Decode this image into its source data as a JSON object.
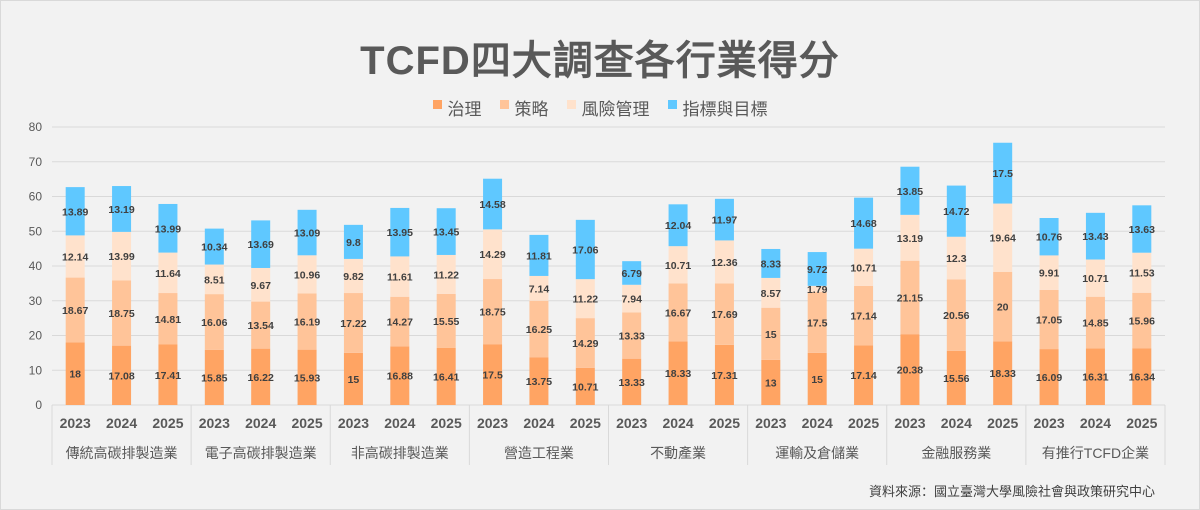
{
  "chart_data": {
    "type": "bar",
    "stacked": true,
    "title": "TCFD四大調查各行業得分",
    "xlabel": "",
    "ylabel": "",
    "ylim": [
      0,
      80
    ],
    "yticks": [
      0,
      10,
      20,
      30,
      40,
      50,
      60,
      70,
      80
    ],
    "grid": true,
    "legend_position": "top",
    "groups": [
      "傳統高碳排製造業",
      "電子高碳排製造業",
      "非高碳排製造業",
      "營造工程業",
      "不動產業",
      "運輸及倉儲業",
      "金融服務業",
      "有推行TCFD企業"
    ],
    "years": [
      "2023",
      "2024",
      "2025"
    ],
    "series": [
      {
        "name": "治理",
        "color": "#ffa463",
        "values": [
          [
            18,
            17.08,
            17.41
          ],
          [
            15.85,
            16.22,
            15.93
          ],
          [
            15,
            16.88,
            16.41
          ],
          [
            17.5,
            13.75,
            10.71
          ],
          [
            13.33,
            18.33,
            17.31
          ],
          [
            13,
            15,
            17.14
          ],
          [
            20.38,
            15.56,
            18.33
          ],
          [
            16.09,
            16.31,
            16.34
          ]
        ]
      },
      {
        "name": "策略",
        "color": "#ffc499",
        "values": [
          [
            18.67,
            18.75,
            14.81
          ],
          [
            16.06,
            13.54,
            16.19
          ],
          [
            17.22,
            14.27,
            15.55
          ],
          [
            18.75,
            16.25,
            14.29
          ],
          [
            13.33,
            16.67,
            17.69
          ],
          [
            15,
            17.5,
            17.14
          ],
          [
            21.15,
            20.56,
            20
          ],
          [
            17.05,
            14.85,
            15.96
          ]
        ]
      },
      {
        "name": "風險管理",
        "color": "#ffe2cc",
        "values": [
          [
            12.14,
            13.99,
            11.64
          ],
          [
            8.51,
            9.67,
            10.96
          ],
          [
            9.82,
            11.61,
            11.22
          ],
          [
            14.29,
            7.14,
            11.22
          ],
          [
            7.94,
            10.71,
            12.36
          ],
          [
            8.57,
            1.79,
            10.71
          ],
          [
            13.19,
            12.3,
            19.64
          ],
          [
            9.91,
            10.71,
            11.53
          ]
        ]
      },
      {
        "name": "指標與目標",
        "color": "#5fc8ff",
        "values": [
          [
            13.89,
            13.19,
            13.99
          ],
          [
            10.34,
            13.69,
            13.09
          ],
          [
            9.8,
            13.95,
            13.45
          ],
          [
            14.58,
            11.81,
            17.06
          ],
          [
            6.79,
            12.04,
            11.97
          ],
          [
            8.33,
            9.72,
            14.68
          ],
          [
            13.85,
            14.72,
            17.5
          ],
          [
            10.76,
            13.43,
            13.63
          ]
        ]
      }
    ]
  },
  "source": "資料來源：國立臺灣大學風險社會與政策研究中心"
}
